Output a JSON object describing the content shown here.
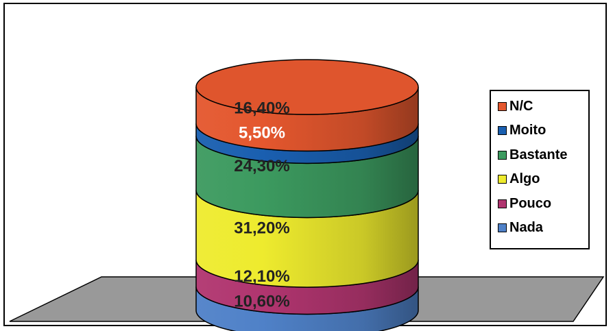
{
  "chart_data": {
    "type": "bar",
    "style": "3d-stacked-cylinder",
    "categories": [
      ""
    ],
    "series": [
      {
        "name": "Nada",
        "values": [
          10.6
        ],
        "label": "10,60%",
        "color": "#4f81c8"
      },
      {
        "name": "Pouco",
        "values": [
          12.1
        ],
        "label": "12,10%",
        "color": "#b0356f"
      },
      {
        "name": "Algo",
        "values": [
          31.2
        ],
        "label": "31,20%",
        "color": "#eeeb2e"
      },
      {
        "name": "Bastante",
        "values": [
          24.3
        ],
        "label": "24,30%",
        "color": "#3c9a5f"
      },
      {
        "name": "Moito",
        "values": [
          5.5
        ],
        "label": "5,50%",
        "color": "#1a5fb0"
      },
      {
        "name": "N/C",
        "values": [
          16.4
        ],
        "label": "16,40%",
        "color": "#e4572e"
      }
    ],
    "legend_order": [
      "N/C",
      "Moito",
      "Bastante",
      "Algo",
      "Pouco",
      "Nada"
    ],
    "legend_position": "right",
    "floor_color": "#999999",
    "grid": false
  }
}
